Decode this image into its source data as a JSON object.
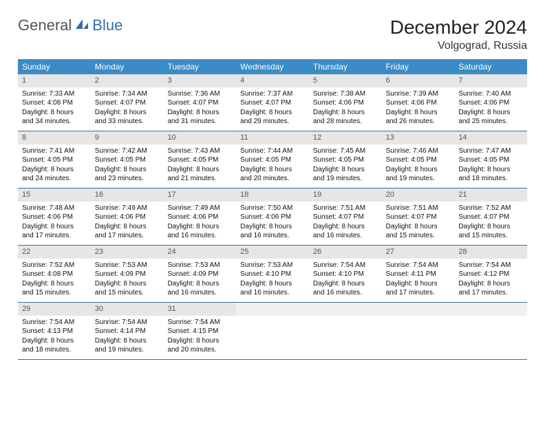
{
  "brand": {
    "part1": "General",
    "part2": "Blue"
  },
  "title": "December 2024",
  "location": "Volgograd, Russia",
  "colors": {
    "header_bg": "#3b8bc4",
    "header_text": "#ffffff",
    "daynum_bg": "#e6e6e6",
    "rule": "#3b6d99",
    "brand_gray": "#555555",
    "brand_blue": "#2f6fa7"
  },
  "dayNames": [
    "Sunday",
    "Monday",
    "Tuesday",
    "Wednesday",
    "Thursday",
    "Friday",
    "Saturday"
  ],
  "weeks": [
    [
      {
        "n": "1",
        "sunrise": "7:33 AM",
        "sunset": "4:08 PM",
        "dl1": "Daylight: 8 hours",
        "dl2": "and 34 minutes."
      },
      {
        "n": "2",
        "sunrise": "7:34 AM",
        "sunset": "4:07 PM",
        "dl1": "Daylight: 8 hours",
        "dl2": "and 33 minutes."
      },
      {
        "n": "3",
        "sunrise": "7:36 AM",
        "sunset": "4:07 PM",
        "dl1": "Daylight: 8 hours",
        "dl2": "and 31 minutes."
      },
      {
        "n": "4",
        "sunrise": "7:37 AM",
        "sunset": "4:07 PM",
        "dl1": "Daylight: 8 hours",
        "dl2": "and 29 minutes."
      },
      {
        "n": "5",
        "sunrise": "7:38 AM",
        "sunset": "4:06 PM",
        "dl1": "Daylight: 8 hours",
        "dl2": "and 28 minutes."
      },
      {
        "n": "6",
        "sunrise": "7:39 AM",
        "sunset": "4:06 PM",
        "dl1": "Daylight: 8 hours",
        "dl2": "and 26 minutes."
      },
      {
        "n": "7",
        "sunrise": "7:40 AM",
        "sunset": "4:06 PM",
        "dl1": "Daylight: 8 hours",
        "dl2": "and 25 minutes."
      }
    ],
    [
      {
        "n": "8",
        "sunrise": "7:41 AM",
        "sunset": "4:05 PM",
        "dl1": "Daylight: 8 hours",
        "dl2": "and 24 minutes."
      },
      {
        "n": "9",
        "sunrise": "7:42 AM",
        "sunset": "4:05 PM",
        "dl1": "Daylight: 8 hours",
        "dl2": "and 23 minutes."
      },
      {
        "n": "10",
        "sunrise": "7:43 AM",
        "sunset": "4:05 PM",
        "dl1": "Daylight: 8 hours",
        "dl2": "and 21 minutes."
      },
      {
        "n": "11",
        "sunrise": "7:44 AM",
        "sunset": "4:05 PM",
        "dl1": "Daylight: 8 hours",
        "dl2": "and 20 minutes."
      },
      {
        "n": "12",
        "sunrise": "7:45 AM",
        "sunset": "4:05 PM",
        "dl1": "Daylight: 8 hours",
        "dl2": "and 19 minutes."
      },
      {
        "n": "13",
        "sunrise": "7:46 AM",
        "sunset": "4:05 PM",
        "dl1": "Daylight: 8 hours",
        "dl2": "and 19 minutes."
      },
      {
        "n": "14",
        "sunrise": "7:47 AM",
        "sunset": "4:05 PM",
        "dl1": "Daylight: 8 hours",
        "dl2": "and 18 minutes."
      }
    ],
    [
      {
        "n": "15",
        "sunrise": "7:48 AM",
        "sunset": "4:06 PM",
        "dl1": "Daylight: 8 hours",
        "dl2": "and 17 minutes."
      },
      {
        "n": "16",
        "sunrise": "7:49 AM",
        "sunset": "4:06 PM",
        "dl1": "Daylight: 8 hours",
        "dl2": "and 17 minutes."
      },
      {
        "n": "17",
        "sunrise": "7:49 AM",
        "sunset": "4:06 PM",
        "dl1": "Daylight: 8 hours",
        "dl2": "and 16 minutes."
      },
      {
        "n": "18",
        "sunrise": "7:50 AM",
        "sunset": "4:06 PM",
        "dl1": "Daylight: 8 hours",
        "dl2": "and 16 minutes."
      },
      {
        "n": "19",
        "sunrise": "7:51 AM",
        "sunset": "4:07 PM",
        "dl1": "Daylight: 8 hours",
        "dl2": "and 16 minutes."
      },
      {
        "n": "20",
        "sunrise": "7:51 AM",
        "sunset": "4:07 PM",
        "dl1": "Daylight: 8 hours",
        "dl2": "and 15 minutes."
      },
      {
        "n": "21",
        "sunrise": "7:52 AM",
        "sunset": "4:07 PM",
        "dl1": "Daylight: 8 hours",
        "dl2": "and 15 minutes."
      }
    ],
    [
      {
        "n": "22",
        "sunrise": "7:52 AM",
        "sunset": "4:08 PM",
        "dl1": "Daylight: 8 hours",
        "dl2": "and 15 minutes."
      },
      {
        "n": "23",
        "sunrise": "7:53 AM",
        "sunset": "4:09 PM",
        "dl1": "Daylight: 8 hours",
        "dl2": "and 15 minutes."
      },
      {
        "n": "24",
        "sunrise": "7:53 AM",
        "sunset": "4:09 PM",
        "dl1": "Daylight: 8 hours",
        "dl2": "and 16 minutes."
      },
      {
        "n": "25",
        "sunrise": "7:53 AM",
        "sunset": "4:10 PM",
        "dl1": "Daylight: 8 hours",
        "dl2": "and 16 minutes."
      },
      {
        "n": "26",
        "sunrise": "7:54 AM",
        "sunset": "4:10 PM",
        "dl1": "Daylight: 8 hours",
        "dl2": "and 16 minutes."
      },
      {
        "n": "27",
        "sunrise": "7:54 AM",
        "sunset": "4:11 PM",
        "dl1": "Daylight: 8 hours",
        "dl2": "and 17 minutes."
      },
      {
        "n": "28",
        "sunrise": "7:54 AM",
        "sunset": "4:12 PM",
        "dl1": "Daylight: 8 hours",
        "dl2": "and 17 minutes."
      }
    ],
    [
      {
        "n": "29",
        "sunrise": "7:54 AM",
        "sunset": "4:13 PM",
        "dl1": "Daylight: 8 hours",
        "dl2": "and 18 minutes."
      },
      {
        "n": "30",
        "sunrise": "7:54 AM",
        "sunset": "4:14 PM",
        "dl1": "Daylight: 8 hours",
        "dl2": "and 19 minutes."
      },
      {
        "n": "31",
        "sunrise": "7:54 AM",
        "sunset": "4:15 PM",
        "dl1": "Daylight: 8 hours",
        "dl2": "and 20 minutes."
      },
      {
        "empty": true
      },
      {
        "empty": true
      },
      {
        "empty": true
      },
      {
        "empty": true
      }
    ]
  ],
  "labels": {
    "sunrise": "Sunrise: ",
    "sunset": "Sunset: "
  }
}
